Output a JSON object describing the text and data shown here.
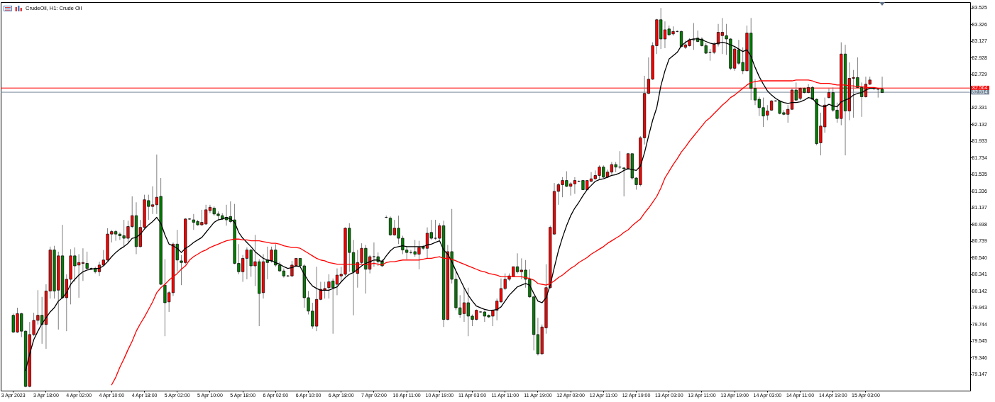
{
  "chart_data": {
    "type": "candlestick",
    "title": "CrudeOil, H1:  Crude Oil",
    "categories": [
      "3 Apr 2023",
      null,
      null,
      null,
      null,
      null,
      null,
      null,
      "3 Apr 18:00",
      null,
      null,
      null,
      null,
      null,
      null,
      null,
      "4 Apr 02:00",
      null,
      null,
      null,
      null,
      null,
      null,
      null,
      "4 Apr 10:00",
      null,
      null,
      null,
      null,
      null,
      null,
      null,
      "4 Apr 18:00",
      null,
      null,
      null,
      null,
      null,
      null,
      null,
      "5 Apr 02:00",
      null,
      null,
      null,
      null,
      null,
      null,
      null,
      "5 Apr 10:00",
      null,
      null,
      null,
      null,
      null,
      null,
      null,
      "5 Apr 18:00",
      null,
      null,
      null,
      null,
      null,
      null,
      null,
      "6 Apr 02:00",
      null,
      null,
      null,
      null,
      null,
      null,
      null,
      "6 Apr 10:00",
      null,
      null,
      null,
      null,
      null,
      null,
      null,
      "6 Apr 18:00",
      null,
      null,
      null,
      null,
      null,
      null,
      null,
      "7 Apr 02:00",
      null,
      null,
      null,
      null,
      null,
      null,
      null,
      "10 Apr 11:00",
      null,
      null,
      null,
      null,
      null,
      null,
      null,
      "10 Apr 19:00",
      null,
      null,
      null,
      null,
      null,
      null,
      null,
      "11 Apr 03:00",
      null,
      null,
      null,
      null,
      null,
      null,
      null,
      "11 Apr 11:00",
      null,
      null,
      null,
      null,
      null,
      null,
      null,
      "11 Apr 19:00",
      null,
      null,
      null,
      null,
      null,
      null,
      null,
      "12 Apr 03:00",
      null,
      null,
      null,
      null,
      null,
      null,
      null,
      "12 Apr 11:00",
      null,
      null,
      null,
      null,
      null,
      null,
      null,
      "12 Apr 19:00",
      null,
      null,
      null,
      null,
      null,
      null,
      null,
      "13 Apr 03:00",
      null,
      null,
      null,
      null,
      null,
      null,
      null,
      "13 Apr 11:00",
      null,
      null,
      null,
      null,
      null,
      null,
      null,
      "13 Apr 19:00",
      null,
      null,
      null,
      null,
      null,
      null,
      null,
      "14 Apr 03:00",
      null,
      null,
      null,
      null,
      null,
      null,
      null,
      "14 Apr 11:00",
      null,
      null,
      null,
      null,
      null,
      null,
      null,
      "14 Apr 19:00",
      null,
      null,
      null,
      null,
      null,
      null,
      null,
      "15 Apr 03:00",
      null,
      null,
      null,
      null
    ],
    "ohlc": [
      [
        79.85,
        79.87,
        79.64,
        79.65
      ],
      [
        79.65,
        79.94,
        79.64,
        79.87
      ],
      [
        79.87,
        79.88,
        79.59,
        79.66
      ],
      [
        79.66,
        79.67,
        78.99,
        79.0
      ],
      [
        79.0,
        79.77,
        78.99,
        79.62
      ],
      [
        79.62,
        79.88,
        79.6,
        79.79
      ],
      [
        79.79,
        80.15,
        79.74,
        79.85
      ],
      [
        79.85,
        80.07,
        79.51,
        79.74
      ],
      [
        79.74,
        80.22,
        79.45,
        80.14
      ],
      [
        80.14,
        80.67,
        80.05,
        80.63
      ],
      [
        80.63,
        80.68,
        80.05,
        80.14
      ],
      [
        80.15,
        80.61,
        79.68,
        80.56
      ],
      [
        80.56,
        80.93,
        80.05,
        80.06
      ],
      [
        80.06,
        80.34,
        79.66,
        80.28
      ],
      [
        80.28,
        80.64,
        79.98,
        80.56
      ],
      [
        80.56,
        80.66,
        80.25,
        80.44
      ],
      [
        80.45,
        80.58,
        80.06,
        80.48
      ],
      [
        80.47,
        80.65,
        80.26,
        80.48
      ],
      [
        80.47,
        80.61,
        80.4,
        80.41
      ],
      [
        80.41,
        80.42,
        80.4,
        80.41
      ],
      [
        80.41,
        80.43,
        80.35,
        80.37
      ],
      [
        80.37,
        80.49,
        80.32,
        80.45
      ],
      [
        80.45,
        80.63,
        80.44,
        80.51
      ],
      [
        80.51,
        80.89,
        80.5,
        80.82
      ],
      [
        80.82,
        80.87,
        80.72,
        80.85
      ],
      [
        80.85,
        80.87,
        80.74,
        80.82
      ],
      [
        80.82,
        80.84,
        80.75,
        80.8
      ],
      [
        80.8,
        80.99,
        80.66,
        80.77
      ],
      [
        80.77,
        80.98,
        80.72,
        80.91
      ],
      [
        80.91,
        81.27,
        80.89,
        81.04
      ],
      [
        81.04,
        81.2,
        80.58,
        80.67
      ],
      [
        80.67,
        80.99,
        80.66,
        80.9
      ],
      [
        80.9,
        81.29,
        80.89,
        81.23
      ],
      [
        81.22,
        81.29,
        80.99,
        81.15
      ],
      [
        81.15,
        81.39,
        81.06,
        81.17
      ],
      [
        81.17,
        81.77,
        81.06,
        81.26
      ],
      [
        81.27,
        81.49,
        80.21,
        80.22
      ],
      [
        80.21,
        80.52,
        79.6,
        80.0
      ],
      [
        80.01,
        80.14,
        79.89,
        80.12
      ],
      [
        80.12,
        80.72,
        80.08,
        80.7
      ],
      [
        80.7,
        80.87,
        80.37,
        80.51
      ],
      [
        80.5,
        80.57,
        80.21,
        80.48
      ],
      [
        80.48,
        81.01,
        80.46,
        81.0
      ],
      [
        81.0,
        81.01,
        80.99,
        81.0
      ],
      [
        80.99,
        81.06,
        80.87,
        80.96
      ],
      [
        80.97,
        80.99,
        80.92,
        80.93
      ],
      [
        80.93,
        81.11,
        80.92,
        80.96
      ],
      [
        80.94,
        81.17,
        80.93,
        81.11
      ],
      [
        81.1,
        81.17,
        81.07,
        81.14
      ],
      [
        81.13,
        81.15,
        81.04,
        81.06
      ],
      [
        81.06,
        81.09,
        80.98,
        81.04
      ],
      [
        81.04,
        81.07,
        80.99,
        81.0
      ],
      [
        81.02,
        81.17,
        80.92,
        80.99
      ],
      [
        81.03,
        81.21,
        80.95,
        80.97
      ],
      [
        80.99,
        81.18,
        80.46,
        80.47
      ],
      [
        80.47,
        80.7,
        80.34,
        80.37
      ],
      [
        80.37,
        80.57,
        80.25,
        80.53
      ],
      [
        80.53,
        80.66,
        80.28,
        80.63
      ],
      [
        80.63,
        80.64,
        80.31,
        80.44
      ],
      [
        80.44,
        80.81,
        80.2,
        80.49
      ],
      [
        80.49,
        80.52,
        79.72,
        80.11
      ],
      [
        80.12,
        80.58,
        80.05,
        80.49
      ],
      [
        80.51,
        80.67,
        80.28,
        80.48
      ],
      [
        80.5,
        80.67,
        80.48,
        80.63
      ],
      [
        80.63,
        80.7,
        80.43,
        80.45
      ],
      [
        80.45,
        80.49,
        80.37,
        80.38
      ],
      [
        80.38,
        80.41,
        80.3,
        80.32
      ],
      [
        80.32,
        80.33,
        80.31,
        80.32
      ],
      [
        80.32,
        80.5,
        80.31,
        80.45
      ],
      [
        80.44,
        80.53,
        80.43,
        80.53
      ],
      [
        80.53,
        80.53,
        80.43,
        80.44
      ],
      [
        80.44,
        80.46,
        79.94,
        80.06
      ],
      [
        80.06,
        80.14,
        79.86,
        79.9
      ],
      [
        79.9,
        80.0,
        79.69,
        79.72
      ],
      [
        79.72,
        80.43,
        79.66,
        80.04
      ],
      [
        80.04,
        80.25,
        80.03,
        80.16
      ],
      [
        80.15,
        80.25,
        80.05,
        80.17
      ],
      [
        80.18,
        80.34,
        80.05,
        80.25
      ],
      [
        80.26,
        80.29,
        79.63,
        80.18
      ],
      [
        80.22,
        80.41,
        80.09,
        80.33
      ],
      [
        80.32,
        80.43,
        80.25,
        80.34
      ],
      [
        80.34,
        80.9,
        80.32,
        80.89
      ],
      [
        80.89,
        80.95,
        80.37,
        80.6
      ],
      [
        80.6,
        80.75,
        79.85,
        80.37
      ],
      [
        80.35,
        80.63,
        80.18,
        80.48
      ],
      [
        80.48,
        80.71,
        80.46,
        80.65
      ],
      [
        80.65,
        80.69,
        80.11,
        80.4
      ],
      [
        80.4,
        80.57,
        80.35,
        80.55
      ],
      [
        80.55,
        80.72,
        80.43,
        80.55
      ],
      [
        80.55,
        80.6,
        80.44,
        80.49
      ],
      [
        80.5,
        80.52,
        80.43,
        80.44
      ],
      [
        81.02,
        81.04,
        81.01,
        81.02
      ],
      [
        81.01,
        81.03,
        80.8,
        80.81
      ],
      [
        80.81,
        80.99,
        80.8,
        80.89
      ],
      [
        80.89,
        81.04,
        80.7,
        80.77
      ],
      [
        80.77,
        80.8,
        80.58,
        80.63
      ],
      [
        80.63,
        80.67,
        80.52,
        80.6
      ],
      [
        80.6,
        80.63,
        80.58,
        80.6
      ],
      [
        80.61,
        80.75,
        80.55,
        80.58
      ],
      [
        80.58,
        80.74,
        80.4,
        80.66
      ],
      [
        80.67,
        80.69,
        80.63,
        80.65
      ],
      [
        80.65,
        80.9,
        80.53,
        80.83
      ],
      [
        80.84,
        80.99,
        80.75,
        80.77
      ],
      [
        80.77,
        80.99,
        80.75,
        80.77
      ],
      [
        80.77,
        80.95,
        80.75,
        80.92
      ],
      [
        80.92,
        80.98,
        79.71,
        79.8
      ],
      [
        79.8,
        80.69,
        79.79,
        80.61
      ],
      [
        80.61,
        81.12,
        80.23,
        80.28
      ],
      [
        80.28,
        80.37,
        79.91,
        79.94
      ],
      [
        79.94,
        80.09,
        79.82,
        79.86
      ],
      [
        79.87,
        80.18,
        79.77,
        80.0
      ],
      [
        80.0,
        80.18,
        79.6,
        79.84
      ],
      [
        79.84,
        79.86,
        79.72,
        79.8
      ],
      [
        79.8,
        79.92,
        79.79,
        79.91
      ],
      [
        79.89,
        79.9,
        79.88,
        79.89
      ],
      [
        79.89,
        79.91,
        79.77,
        79.84
      ],
      [
        79.85,
        79.86,
        79.82,
        79.83
      ],
      [
        79.84,
        79.92,
        79.72,
        79.91
      ],
      [
        79.91,
        80.05,
        79.79,
        80.02
      ],
      [
        80.01,
        80.29,
        80.0,
        80.17
      ],
      [
        80.17,
        80.35,
        80.15,
        80.28
      ],
      [
        80.28,
        80.35,
        80.26,
        80.32
      ],
      [
        80.31,
        80.43,
        80.31,
        80.43
      ],
      [
        80.43,
        80.59,
        80.35,
        80.37
      ],
      [
        80.37,
        80.53,
        80.28,
        80.39
      ],
      [
        80.39,
        80.51,
        80.18,
        80.28
      ],
      [
        80.28,
        80.4,
        80.06,
        80.07
      ],
      [
        80.07,
        80.08,
        79.43,
        79.62
      ],
      [
        79.62,
        79.82,
        79.37,
        79.39
      ],
      [
        79.39,
        79.74,
        79.38,
        79.71
      ],
      [
        79.7,
        80.46,
        79.63,
        80.18
      ],
      [
        80.18,
        80.92,
        80.17,
        80.9
      ],
      [
        80.82,
        81.43,
        80.81,
        81.33
      ],
      [
        81.33,
        81.43,
        81.17,
        81.41
      ],
      [
        81.41,
        81.5,
        81.26,
        81.46
      ],
      [
        81.46,
        81.57,
        81.38,
        81.39
      ],
      [
        81.39,
        81.44,
        81.28,
        81.42
      ],
      [
        81.42,
        81.5,
        81.3,
        81.46
      ],
      [
        81.45,
        81.46,
        81.44,
        81.45
      ],
      [
        81.46,
        81.46,
        81.35,
        81.35
      ],
      [
        81.35,
        81.46,
        81.35,
        81.46
      ],
      [
        81.45,
        81.56,
        81.44,
        81.48
      ],
      [
        81.48,
        81.58,
        81.47,
        81.52
      ],
      [
        81.52,
        81.64,
        81.48,
        81.62
      ],
      [
        81.62,
        81.64,
        81.49,
        81.5
      ],
      [
        81.5,
        81.59,
        81.49,
        81.56
      ],
      [
        81.56,
        81.68,
        81.53,
        81.65
      ],
      [
        81.65,
        81.68,
        81.56,
        81.62
      ],
      [
        81.62,
        81.81,
        81.6,
        81.62
      ],
      [
        81.61,
        81.62,
        81.27,
        81.6
      ],
      [
        81.6,
        81.79,
        81.59,
        81.78
      ],
      [
        81.78,
        81.78,
        81.47,
        81.49
      ],
      [
        81.49,
        81.5,
        81.35,
        81.41
      ],
      [
        81.41,
        81.99,
        81.39,
        81.97
      ],
      [
        81.97,
        82.71,
        81.89,
        82.5
      ],
      [
        82.5,
        82.93,
        82.49,
        82.67
      ],
      [
        82.67,
        83.11,
        82.66,
        83.07
      ],
      [
        83.07,
        83.39,
        82.97,
        83.38
      ],
      [
        83.38,
        83.52,
        83.03,
        83.15
      ],
      [
        83.15,
        83.36,
        83.04,
        83.26
      ],
      [
        83.27,
        83.31,
        83.19,
        83.2
      ],
      [
        83.21,
        83.3,
        83.19,
        83.24
      ],
      [
        83.24,
        83.25,
        83.23,
        83.24
      ],
      [
        83.24,
        83.25,
        83.05,
        83.06
      ],
      [
        83.05,
        83.13,
        83.03,
        83.08
      ],
      [
        83.07,
        83.16,
        83.06,
        83.14
      ],
      [
        83.14,
        83.34,
        83.02,
        83.14
      ],
      [
        83.16,
        83.25,
        83.11,
        83.12
      ],
      [
        83.15,
        83.17,
        83.06,
        83.07
      ],
      [
        83.07,
        83.1,
        82.97,
        82.98
      ],
      [
        82.99,
        83.03,
        82.89,
        82.99
      ],
      [
        82.99,
        83.11,
        82.97,
        83.09
      ],
      [
        83.09,
        83.33,
        83.06,
        83.23
      ],
      [
        83.19,
        83.4,
        82.97,
        83.23
      ],
      [
        83.19,
        83.33,
        82.96,
        83.15
      ],
      [
        83.15,
        83.16,
        82.78,
        82.8
      ],
      [
        82.8,
        83.05,
        82.77,
        83.03
      ],
      [
        83.02,
        83.14,
        82.84,
        82.86
      ],
      [
        82.87,
        83.05,
        82.73,
        82.77
      ],
      [
        82.77,
        83.31,
        82.77,
        83.22
      ],
      [
        83.22,
        83.4,
        82.42,
        82.56
      ],
      [
        82.56,
        82.67,
        82.36,
        82.42
      ],
      [
        82.43,
        82.46,
        82.23,
        82.33
      ],
      [
        82.33,
        82.45,
        82.1,
        82.23
      ],
      [
        82.24,
        82.36,
        82.18,
        82.29
      ],
      [
        82.3,
        82.42,
        82.29,
        82.41
      ],
      [
        82.41,
        82.42,
        82.4,
        82.41
      ],
      [
        82.41,
        82.42,
        82.25,
        82.26
      ],
      [
        82.27,
        82.3,
        82.24,
        82.25
      ],
      [
        82.25,
        82.36,
        82.15,
        82.31
      ],
      [
        82.31,
        82.56,
        82.3,
        82.54
      ],
      [
        82.54,
        82.63,
        82.41,
        82.42
      ],
      [
        82.44,
        82.57,
        82.42,
        82.56
      ],
      [
        82.56,
        82.57,
        82.5,
        82.51
      ],
      [
        82.51,
        82.61,
        82.5,
        82.57
      ],
      [
        82.57,
        82.59,
        82.42,
        82.43
      ],
      [
        82.43,
        82.44,
        81.88,
        81.9
      ],
      [
        81.91,
        82.27,
        81.76,
        82.11
      ],
      [
        82.1,
        82.45,
        82.03,
        82.36
      ],
      [
        82.45,
        82.56,
        82.44,
        82.51
      ],
      [
        82.51,
        82.57,
        82.28,
        82.3
      ],
      [
        82.3,
        82.39,
        82.15,
        82.2
      ],
      [
        82.2,
        83.11,
        82.12,
        82.97
      ],
      [
        82.97,
        83.08,
        81.76,
        82.29
      ],
      [
        82.29,
        82.87,
        82.18,
        82.68
      ],
      [
        82.68,
        82.78,
        82.21,
        82.69
      ],
      [
        82.69,
        82.93,
        82.56,
        82.57
      ],
      [
        82.57,
        82.63,
        82.22,
        82.46
      ],
      [
        82.46,
        82.7,
        82.45,
        82.61
      ],
      [
        82.61,
        82.7,
        82.6,
        82.66
      ],
      [
        82.56,
        82.57,
        82.54,
        82.56
      ],
      [
        82.55,
        82.56,
        82.45,
        82.55
      ],
      [
        82.55,
        82.7,
        82.51,
        82.51
      ]
    ],
    "colors": [
      "#008000",
      "#ff0000",
      "#008000",
      "#008000",
      "#ff0000",
      "#ff0000",
      "#ff0000",
      "#008000",
      "#ff0000",
      "#ff0000",
      "#008000",
      "#ff0000",
      "#008000",
      "#ff0000",
      "#ff0000",
      "#008000",
      "#ff0000",
      "#ff0000",
      "#008000",
      "#000000",
      "#008000",
      "#ff0000",
      "#ff0000",
      "#ff0000",
      "#ff0000",
      "#008000",
      "#008000",
      "#008000",
      "#ff0000",
      "#ff0000",
      "#008000",
      "#ff0000",
      "#ff0000",
      "#008000",
      "#ff0000",
      "#ff0000",
      "#008000",
      "#008000",
      "#ff0000",
      "#ff0000",
      "#008000",
      "#008000",
      "#ff0000",
      "#000000",
      "#008000",
      "#008000",
      "#ff0000",
      "#ff0000",
      "#ff0000",
      "#008000",
      "#008000",
      "#008000",
      "#008000",
      "#008000",
      "#008000",
      "#008000",
      "#ff0000",
      "#ff0000",
      "#008000",
      "#ff0000",
      "#008000",
      "#ff0000",
      "#008000",
      "#ff0000",
      "#008000",
      "#008000",
      "#008000",
      "#000000",
      "#ff0000",
      "#ff0000",
      "#008000",
      "#008000",
      "#008000",
      "#008000",
      "#ff0000",
      "#ff0000",
      "#ff0000",
      "#ff0000",
      "#008000",
      "#ff0000",
      "#ff0000",
      "#ff0000",
      "#008000",
      "#008000",
      "#ff0000",
      "#ff0000",
      "#008000",
      "#ff0000",
      "#000000",
      "#008000",
      "#008000",
      "#000000",
      "#008000",
      "#ff0000",
      "#008000",
      "#008000",
      "#008000",
      "#000000",
      "#008000",
      "#ff0000",
      "#008000",
      "#ff0000",
      "#008000",
      "#000000",
      "#ff0000",
      "#008000",
      "#ff0000",
      "#008000",
      "#008000",
      "#008000",
      "#ff0000",
      "#008000",
      "#008000",
      "#ff0000",
      "#000000",
      "#008000",
      "#008000",
      "#ff0000",
      "#ff0000",
      "#ff0000",
      "#ff0000",
      "#ff0000",
      "#ff0000",
      "#008000",
      "#ff0000",
      "#008000",
      "#008000",
      "#008000",
      "#008000",
      "#ff0000",
      "#ff0000",
      "#ff0000",
      "#ff0000",
      "#ff0000",
      "#ff0000",
      "#008000",
      "#ff0000",
      "#ff0000",
      "#000000",
      "#008000",
      "#ff0000",
      "#ff0000",
      "#ff0000",
      "#ff0000",
      "#008000",
      "#ff0000",
      "#ff0000",
      "#008000",
      "#000000",
      "#008000",
      "#ff0000",
      "#008000",
      "#008000",
      "#ff0000",
      "#ff0000",
      "#ff0000",
      "#ff0000",
      "#ff0000",
      "#008000",
      "#ff0000",
      "#008000",
      "#ff0000",
      "#000000",
      "#008000",
      "#ff0000",
      "#ff0000",
      "#000000",
      "#008000",
      "#008000",
      "#008000",
      "#000000",
      "#ff0000",
      "#ff0000",
      "#ff0000",
      "#008000",
      "#008000",
      "#ff0000",
      "#008000",
      "#008000",
      "#ff0000",
      "#008000",
      "#008000",
      "#008000",
      "#008000",
      "#ff0000",
      "#ff0000",
      "#000000",
      "#008000",
      "#008000",
      "#ff0000",
      "#ff0000",
      "#008000",
      "#ff0000",
      "#008000",
      "#ff0000",
      "#008000",
      "#008000",
      "#ff0000",
      "#ff0000",
      "#ff0000",
      "#008000",
      "#008000",
      "#ff0000",
      "#008000",
      "#ff0000",
      "#ff0000",
      "#008000",
      "#008000",
      "#ff0000",
      "#ff0000",
      "#000000",
      "#000000",
      "#008000"
    ],
    "series": [
      {
        "type": "line",
        "color": "#000000",
        "values": [
          null,
          null,
          null,
          79.19,
          79.39,
          79.56,
          79.66,
          79.75,
          79.82,
          79.89,
          79.94,
          80.02,
          80.06,
          80.12,
          80.22,
          80.28,
          80.33,
          80.37,
          80.39,
          80.4,
          80.41,
          80.41,
          80.44,
          80.49,
          80.55,
          80.6,
          80.64,
          80.67,
          80.71,
          80.77,
          80.78,
          80.82,
          80.88,
          80.93,
          80.97,
          81.02,
          80.95,
          80.81,
          80.7,
          80.68,
          80.65,
          80.6,
          80.65,
          80.68,
          80.72,
          80.75,
          80.78,
          80.84,
          80.9,
          80.96,
          80.99,
          81.0,
          81.02,
          81.0,
          80.96,
          80.84,
          80.77,
          80.72,
          80.67,
          80.61,
          80.57,
          80.53,
          80.51,
          80.5,
          80.48,
          80.46,
          80.43,
          80.41,
          80.42,
          80.44,
          80.43,
          80.34,
          80.26,
          80.2,
          80.17,
          80.15,
          80.15,
          80.15,
          80.17,
          80.19,
          80.25,
          80.3,
          80.34,
          80.36,
          80.4,
          80.44,
          80.47,
          80.49,
          80.51,
          80.51,
          80.49,
          80.56,
          80.62,
          80.66,
          80.67,
          80.68,
          80.67,
          80.67,
          80.67,
          80.67,
          80.67,
          80.69,
          80.7,
          80.72,
          80.74,
          80.63,
          80.58,
          80.49,
          80.38,
          80.28,
          80.18,
          80.09,
          80.02,
          79.96,
          79.94,
          79.92,
          79.91,
          79.91,
          79.92,
          79.95,
          80.02,
          80.09,
          80.14,
          80.19,
          80.21,
          80.23,
          80.21,
          80.11,
          80.02,
          80.0,
          80.06,
          80.21,
          80.42,
          80.62,
          80.78,
          80.92,
          81.04,
          81.13,
          81.2,
          81.28,
          81.35,
          81.4,
          81.45,
          81.47,
          81.48,
          81.5,
          81.52,
          81.53,
          81.55,
          81.58,
          81.6,
          81.59,
          81.58,
          81.63,
          81.79,
          81.99,
          82.18,
          82.33,
          82.59,
          82.77,
          82.91,
          82.95,
          82.99,
          83.07,
          83.11,
          83.14,
          83.15,
          83.15,
          83.14,
          83.12,
          83.1,
          83.09,
          83.1,
          83.11,
          83.1,
          83.08,
          83.06,
          83.03,
          83.0,
          83.02,
          82.94,
          82.81,
          82.7,
          82.61,
          82.53,
          82.48,
          82.44,
          82.41,
          82.39,
          82.38,
          82.39,
          82.39,
          82.4,
          82.42,
          82.45,
          82.44,
          82.38,
          82.35,
          82.34,
          82.37,
          82.35,
          82.34,
          82.4,
          82.42,
          82.44,
          82.48,
          82.5,
          82.51,
          82.54,
          82.56,
          82.56,
          82.56,
          82.56
        ]
      },
      {
        "type": "line",
        "color": "#ff0000",
        "values": [
          null,
          null,
          null,
          null,
          null,
          null,
          null,
          null,
          null,
          null,
          null,
          null,
          null,
          null,
          null,
          null,
          null,
          null,
          null,
          null,
          null,
          null,
          null,
          null,
          79.02,
          79.11,
          79.23,
          79.33,
          79.44,
          79.54,
          79.66,
          79.75,
          79.83,
          79.92,
          80.01,
          80.12,
          80.18,
          80.22,
          80.27,
          80.31,
          80.35,
          80.4,
          80.44,
          80.51,
          80.55,
          80.58,
          80.61,
          80.63,
          80.66,
          80.68,
          80.7,
          80.72,
          80.74,
          80.75,
          80.76,
          80.76,
          80.75,
          80.75,
          80.74,
          80.74,
          80.74,
          80.73,
          80.72,
          80.71,
          80.71,
          80.7,
          80.68,
          80.67,
          80.66,
          80.66,
          80.65,
          80.62,
          80.59,
          80.56,
          80.53,
          80.51,
          80.5,
          80.48,
          80.47,
          80.46,
          80.46,
          80.46,
          80.46,
          80.46,
          80.46,
          80.46,
          80.46,
          80.46,
          80.47,
          80.46,
          80.45,
          80.48,
          80.49,
          80.49,
          80.5,
          80.51,
          80.51,
          80.51,
          80.51,
          80.51,
          80.52,
          80.53,
          80.53,
          80.54,
          80.55,
          80.53,
          80.53,
          80.52,
          80.5,
          80.48,
          80.46,
          80.44,
          80.42,
          80.4,
          80.38,
          80.37,
          80.35,
          80.34,
          80.33,
          80.31,
          80.31,
          80.31,
          80.31,
          80.31,
          80.31,
          80.3,
          80.29,
          80.27,
          80.23,
          80.22,
          80.21,
          80.23,
          80.26,
          80.3,
          80.33,
          80.37,
          80.41,
          80.44,
          80.48,
          80.51,
          80.54,
          80.58,
          80.61,
          80.64,
          80.67,
          80.71,
          80.74,
          80.77,
          80.8,
          80.84,
          80.87,
          80.92,
          80.96,
          81.0,
          81.07,
          81.13,
          81.2,
          81.27,
          81.37,
          81.49,
          81.57,
          81.65,
          81.72,
          81.8,
          81.86,
          81.93,
          81.99,
          82.05,
          82.11,
          82.17,
          82.21,
          82.26,
          82.31,
          82.36,
          82.4,
          82.45,
          82.48,
          82.52,
          82.56,
          82.6,
          82.63,
          82.64,
          82.65,
          82.65,
          82.65,
          82.65,
          82.65,
          82.65,
          82.65,
          82.65,
          82.65,
          82.66,
          82.66,
          82.66,
          82.66,
          82.65,
          82.63,
          82.62,
          82.62,
          82.62,
          82.61,
          82.6,
          82.6,
          82.6,
          82.59,
          82.59,
          82.58,
          82.58,
          82.57,
          82.57,
          82.57,
          82.56,
          82.56
        ]
      }
    ],
    "ylim": [
      78.95,
      83.59
    ],
    "yticks": [
      83.525,
      83.326,
      83.127,
      82.928,
      82.729,
      82.331,
      82.132,
      81.933,
      81.734,
      81.535,
      81.336,
      81.137,
      80.938,
      80.739,
      {
        "value": 80.54,
        "label": "80.540"
      },
      80.341,
      80.142,
      79.943,
      79.744,
      79.545,
      79.346,
      79.147
    ],
    "ref_lines": [
      {
        "axis": "y",
        "value": 82.564,
        "label": "82.564",
        "color": "#ff0000"
      },
      {
        "axis": "y",
        "value": 82.514,
        "label": "82.514",
        "color": "#778899"
      }
    ]
  }
}
